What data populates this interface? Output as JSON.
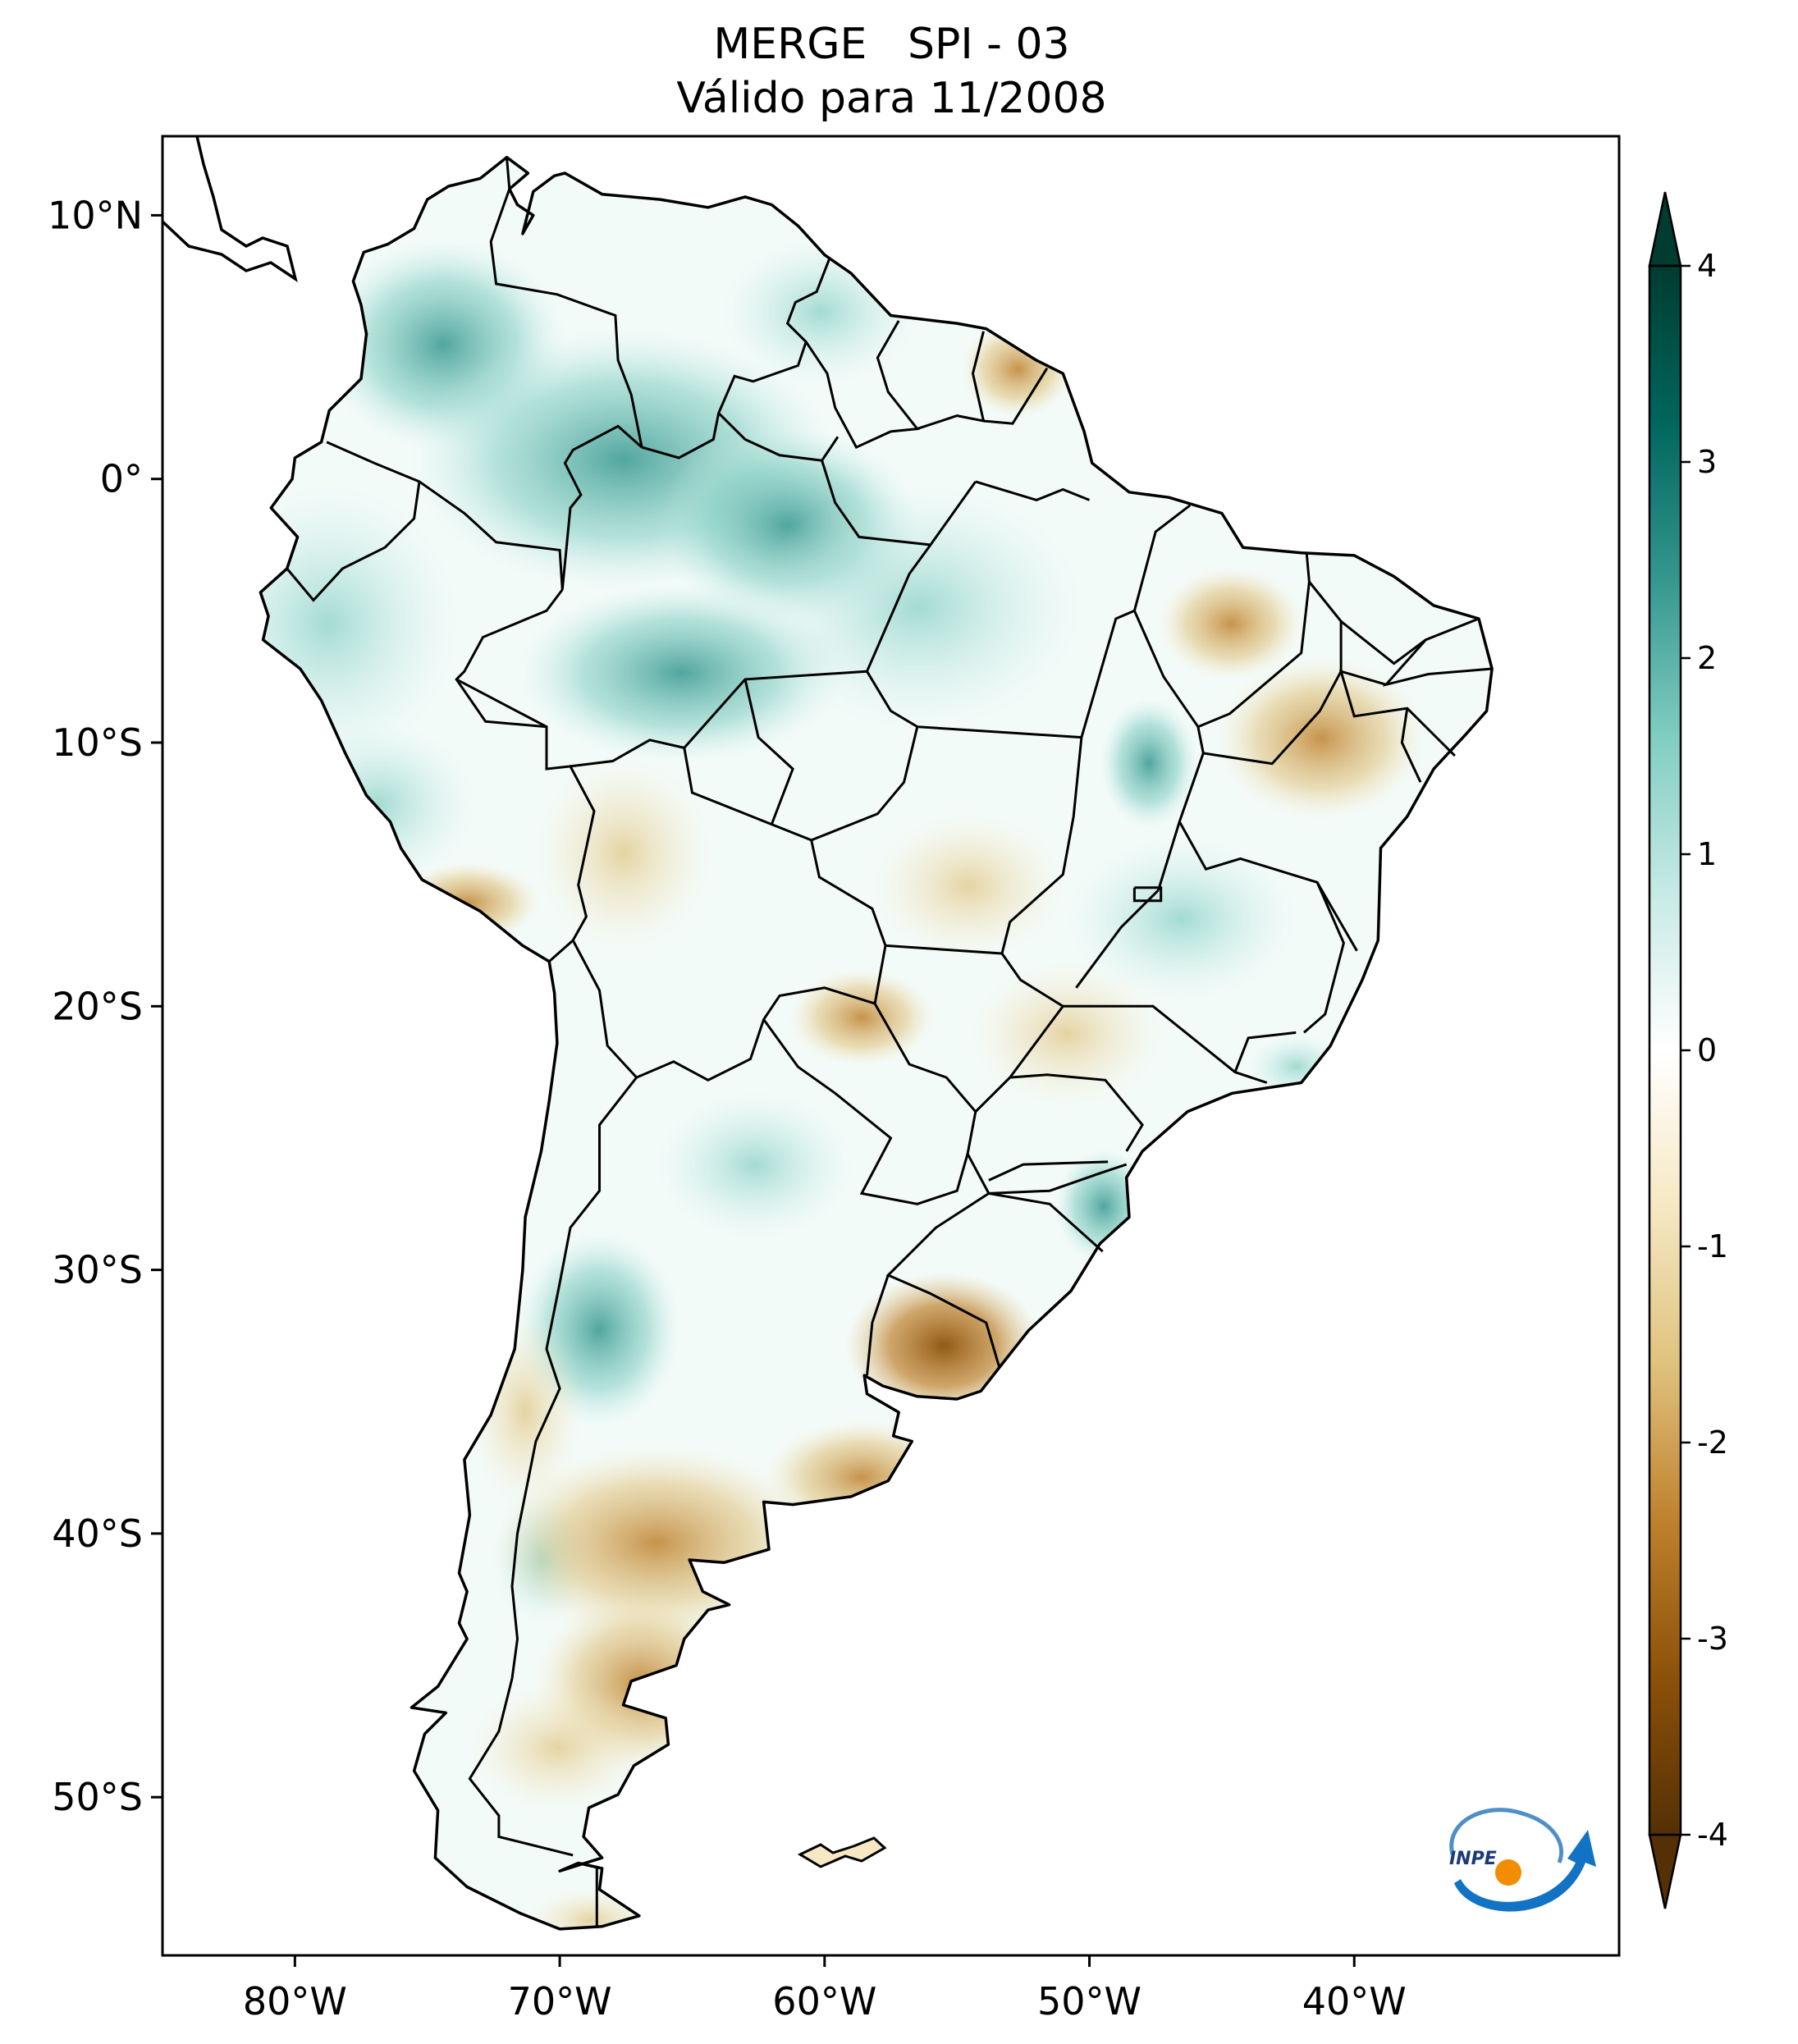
{
  "title": {
    "line1": "MERGE   SPI - 03",
    "line2": "Válido para 11/2008"
  },
  "map": {
    "extent": {
      "lon": [
        -85,
        -30
      ],
      "lat": [
        -56,
        13
      ]
    },
    "lon_ticks": [
      {
        "value": -80,
        "label": "80°W"
      },
      {
        "value": -70,
        "label": "70°W"
      },
      {
        "value": -60,
        "label": "60°W"
      },
      {
        "value": -50,
        "label": "50°W"
      },
      {
        "value": -40,
        "label": "40°W"
      }
    ],
    "lat_ticks": [
      {
        "value": 10,
        "label": "10°N"
      },
      {
        "value": 0,
        "label": "0°"
      },
      {
        "value": -10,
        "label": "10°S"
      },
      {
        "value": -20,
        "label": "20°S"
      },
      {
        "value": -30,
        "label": "30°S"
      },
      {
        "value": -40,
        "label": "40°S"
      },
      {
        "value": -50,
        "label": "50°S"
      }
    ]
  },
  "colorbar": {
    "range": [
      -4,
      4
    ],
    "ticks": [
      {
        "value": 4,
        "label": "4"
      },
      {
        "value": 3,
        "label": "3"
      },
      {
        "value": 2,
        "label": "2"
      },
      {
        "value": 1,
        "label": "1"
      },
      {
        "value": 0,
        "label": "0"
      },
      {
        "value": -1,
        "label": "-1"
      },
      {
        "value": -2,
        "label": "-2"
      },
      {
        "value": -3,
        "label": "-3"
      },
      {
        "value": -4,
        "label": "-4"
      }
    ],
    "colors": [
      "#553005",
      "#8c5109",
      "#bf812d",
      "#dfc27d",
      "#f6e8c3",
      "#ffffff",
      "#c7eae5",
      "#80cdc1",
      "#35978f",
      "#01665e",
      "#003c30"
    ]
  },
  "logo": {
    "text": "INPE"
  }
}
